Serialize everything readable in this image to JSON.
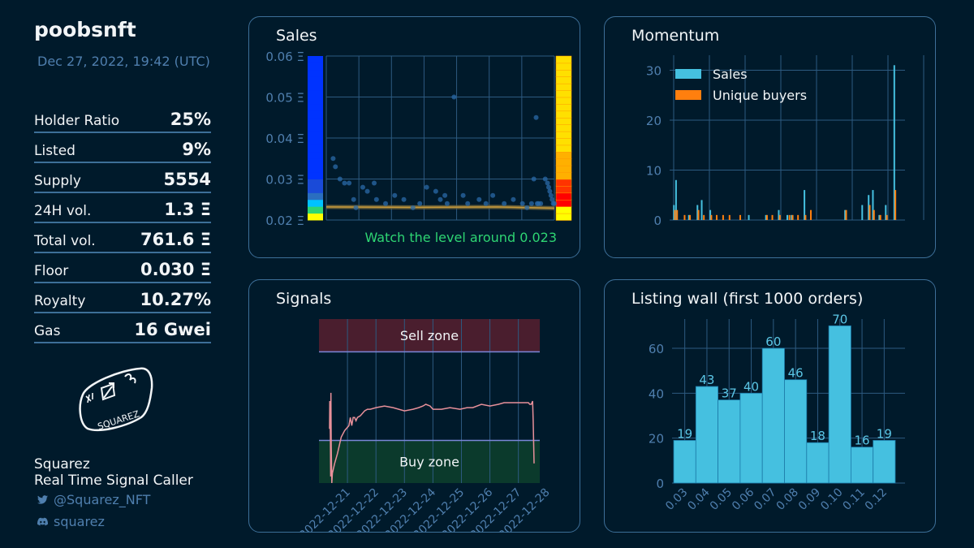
{
  "collection": {
    "name": "poobsnft",
    "date": "Dec 27, 2022, 19:42 (UTC)"
  },
  "stats": [
    {
      "label": "Holder Ratio",
      "value": "25%"
    },
    {
      "label": "Listed",
      "value": "9%"
    },
    {
      "label": "Supply",
      "value": "5554"
    },
    {
      "label": "24H vol.",
      "value": "1.3 Ξ"
    },
    {
      "label": "Total vol.",
      "value": "761.6 Ξ"
    },
    {
      "label": "Floor",
      "value": "0.030 Ξ"
    },
    {
      "label": "Royalty",
      "value": "10.27%"
    },
    {
      "label": "Gas",
      "value": "16 Gwei"
    }
  ],
  "brand": {
    "logo_text": "SQUAREZ",
    "name": "Squarez",
    "tagline": "Real Time Signal Caller",
    "twitter": "@Squarez_NFT",
    "discord": "squarez"
  },
  "icons": {
    "twitter": "twitter-icon",
    "discord": "discord-icon"
  },
  "colors": {
    "background": "#001a2b",
    "panel_border": "#3d6f98",
    "sales_bar": "#45c0e0",
    "buyers_bar": "#ff7f0e",
    "signal_line": "#e8909a",
    "sell_zone": "#4a1e2e",
    "buy_zone": "#0b3a2c",
    "level_text": "#2ed573",
    "axis_text": "#4f7fae"
  },
  "chart_data": [
    {
      "id": "sales",
      "type": "scatter",
      "title": "Sales",
      "ylim": [
        0.02,
        0.06
      ],
      "xlim": [
        0,
        100
      ],
      "y_ticks": [
        "0.06 Ξ",
        "0.05 Ξ",
        "0.04 Ξ",
        "0.03 Ξ",
        "0.02 Ξ"
      ],
      "y_tick_values": [
        0.06,
        0.05,
        0.04,
        0.03,
        0.02
      ],
      "annotation": "Watch the level around 0.023",
      "level": 0.023,
      "points": [
        [
          3,
          0.035
        ],
        [
          4,
          0.033
        ],
        [
          6,
          0.03
        ],
        [
          8,
          0.029
        ],
        [
          10,
          0.029
        ],
        [
          12,
          0.025
        ],
        [
          13,
          0.023
        ],
        [
          16,
          0.028
        ],
        [
          18,
          0.027
        ],
        [
          21,
          0.029
        ],
        [
          22,
          0.025
        ],
        [
          26,
          0.024
        ],
        [
          30,
          0.026
        ],
        [
          34,
          0.025
        ],
        [
          38,
          0.023
        ],
        [
          41,
          0.024
        ],
        [
          44,
          0.028
        ],
        [
          48,
          0.027
        ],
        [
          50,
          0.025
        ],
        [
          52,
          0.026
        ],
        [
          53,
          0.024
        ],
        [
          56,
          0.05
        ],
        [
          60,
          0.026
        ],
        [
          62,
          0.024
        ],
        [
          67,
          0.025
        ],
        [
          70,
          0.024
        ],
        [
          73,
          0.026
        ],
        [
          78,
          0.024
        ],
        [
          82,
          0.025
        ],
        [
          86,
          0.024
        ],
        [
          88,
          0.023
        ],
        [
          90,
          0.024
        ],
        [
          91,
          0.03
        ],
        [
          92,
          0.045
        ],
        [
          92.5,
          0.024
        ],
        [
          93,
          0.024
        ],
        [
          94,
          0.024
        ],
        [
          96,
          0.03
        ],
        [
          97,
          0.029
        ],
        [
          97.5,
          0.028
        ],
        [
          98,
          0.027
        ],
        [
          98.5,
          0.026
        ],
        [
          99,
          0.025
        ],
        [
          99.5,
          0.024
        ],
        [
          100,
          0.024
        ]
      ],
      "trend": [
        [
          0,
          0.0232
        ],
        [
          40,
          0.0231
        ],
        [
          75,
          0.0232
        ],
        [
          100,
          0.0229
        ]
      ],
      "left_heat": {
        "range": [
          0.02,
          0.06
        ],
        "stops": [
          [
            0.02,
            "#ffff00"
          ],
          [
            0.0215,
            "#2ed573"
          ],
          [
            0.0232,
            "#00c2ff"
          ],
          [
            0.0245,
            "#2a6ec0"
          ],
          [
            0.026,
            "#1a4ad8"
          ],
          [
            0.03,
            "#0033ff"
          ],
          [
            0.06,
            "#0000ff"
          ]
        ]
      },
      "right_heat": {
        "range": [
          0.02,
          0.06
        ],
        "stops": [
          [
            0.02,
            "#ffff00"
          ],
          [
            0.023,
            "#ff0000"
          ],
          [
            0.026,
            "#ff3300"
          ],
          [
            0.029,
            "#ffb000"
          ],
          [
            0.035,
            "#ffe000"
          ],
          [
            0.06,
            "#ffff00"
          ]
        ]
      }
    },
    {
      "id": "momentum",
      "type": "bar",
      "title": "Momentum",
      "ylim": [
        0,
        33
      ],
      "y_ticks": [
        0,
        10,
        20,
        30
      ],
      "xlim": [
        0,
        110
      ],
      "series": [
        {
          "name": "Sales",
          "x": [
            2,
            3,
            9,
            13,
            15,
            19,
            37,
            45,
            51,
            55,
            57,
            63,
            82,
            90,
            93,
            95,
            98,
            101,
            105
          ],
          "values": [
            3,
            8,
            1,
            3,
            4,
            2,
            1,
            1,
            2,
            1,
            1,
            6,
            2,
            3,
            5,
            6,
            1,
            3,
            31
          ]
        },
        {
          "name": "Unique buyers",
          "x": [
            2.5,
            3.5,
            7,
            9.5,
            13.5,
            16,
            19.5,
            22,
            25,
            28,
            33,
            45.5,
            48,
            51.5,
            56,
            57.5,
            60,
            63.5,
            66,
            82.5,
            93.5,
            95.5,
            98.5,
            101.5,
            105.5
          ],
          "values": [
            2,
            2,
            1,
            1,
            2,
            1,
            1,
            1,
            1,
            1,
            1,
            1,
            1,
            1,
            1,
            1,
            1,
            1,
            2,
            2,
            3,
            2,
            1,
            1,
            6
          ]
        }
      ]
    },
    {
      "id": "signals",
      "type": "line",
      "title": "Signals",
      "ylim": [
        0,
        100
      ],
      "x_ticks": [
        "2022-12-21",
        "2022-12-22",
        "2022-12-23",
        "2022-12-24",
        "2022-12-25",
        "2022-12-26",
        "2022-12-27",
        "2022-12-28"
      ],
      "x_tick_positions": [
        1,
        2,
        3,
        4,
        5,
        6,
        7,
        8
      ],
      "xlim": [
        0.0,
        7.75
      ],
      "sell_zone": {
        "label": "Sell zone",
        "from": 80,
        "to": 100
      },
      "buy_zone": {
        "label": "Buy zone",
        "from": 0,
        "to": 26
      },
      "series": [
        {
          "name": "signal",
          "x": [
            0.37,
            0.38,
            0.4,
            0.41,
            0.42,
            0.43,
            0.45,
            0.47,
            0.55,
            0.65,
            0.78,
            0.9,
            1.05,
            1.1,
            1.15,
            1.2,
            1.25,
            1.3,
            1.35,
            1.45,
            1.6,
            1.7,
            1.8,
            2.0,
            2.3,
            2.6,
            3.0,
            3.3,
            3.5,
            3.65,
            3.75,
            3.9,
            4.0,
            4.3,
            4.6,
            4.95,
            5.2,
            5.4,
            5.7,
            6.0,
            6.3,
            6.5,
            6.8,
            7.0,
            7.2,
            7.35,
            7.4,
            7.45,
            7.5,
            7.52,
            7.55
          ],
          "values": [
            33,
            50,
            30,
            4,
            55,
            22,
            0,
            6,
            12,
            18,
            28,
            32,
            35,
            40,
            35,
            40,
            40,
            38,
            40,
            41,
            44,
            45,
            45,
            46,
            47,
            46,
            44,
            45,
            46,
            47,
            48,
            47,
            45,
            45,
            46,
            45,
            46,
            46,
            48,
            47,
            48,
            49,
            49,
            49,
            49,
            49,
            48,
            48,
            50,
            38,
            12
          ]
        }
      ]
    },
    {
      "id": "listing_wall",
      "type": "bar",
      "title": "Listing wall (first 1000 orders)",
      "ylim": [
        0,
        73
      ],
      "y_ticks": [
        0,
        20,
        40,
        60
      ],
      "categories": [
        "0.03",
        "0.04",
        "0.05",
        "0.06",
        "0.07",
        "0.08",
        "0.09",
        "0.10",
        "0.11",
        "0.12"
      ],
      "values": [
        19,
        43,
        37,
        40,
        60,
        46,
        18,
        70,
        16,
        19
      ]
    }
  ]
}
